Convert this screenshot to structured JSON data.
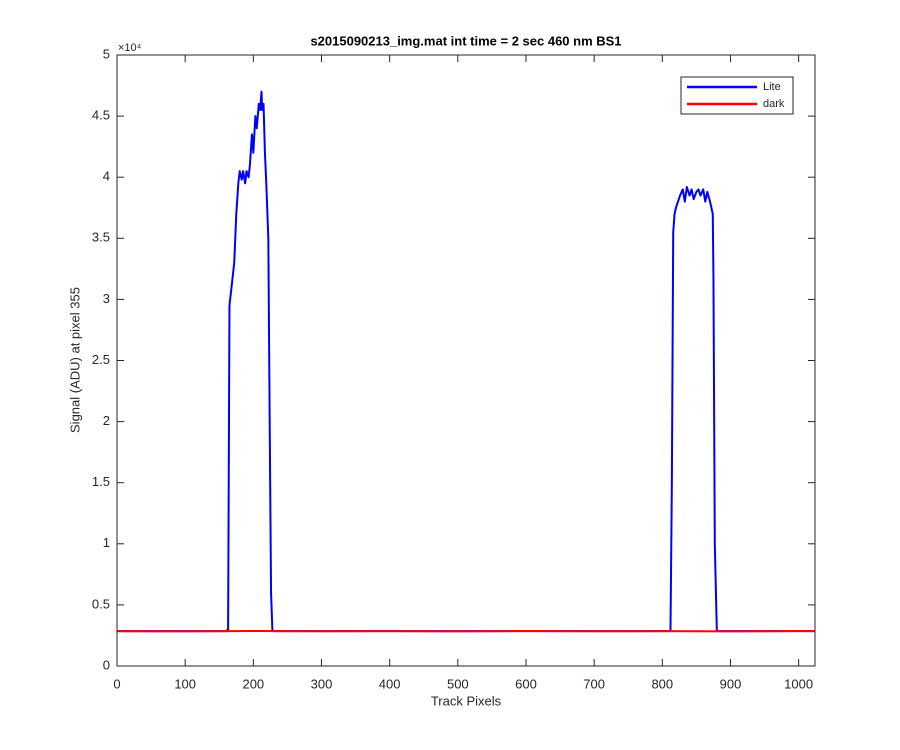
{
  "chart_data": {
    "type": "line",
    "title": "s2015090213_img.mat int time = 2 sec  460 nm BS1",
    "x_label": "Track Pixels",
    "y_label": "Signal (ADU) at pixel 355",
    "y_exponent_label": "×10⁴",
    "xlim": [
      0,
      1024
    ],
    "xticks": [
      0,
      100,
      200,
      300,
      400,
      500,
      600,
      700,
      800,
      900,
      1000
    ],
    "ylim": [
      0,
      5
    ],
    "yticks": [
      0,
      0.5,
      1,
      1.5,
      2,
      2.5,
      3,
      3.5,
      4,
      4.5,
      5
    ],
    "grid": false,
    "legend_position": "top-right",
    "series": [
      {
        "name": "Lite",
        "color": "#0000ff",
        "x": [
          0,
          50,
          100,
          150,
          160,
          163,
          165,
          168,
          172,
          175,
          178,
          180,
          183,
          185,
          188,
          190,
          193,
          195,
          198,
          200,
          203,
          205,
          208,
          210,
          212,
          213,
          215,
          217,
          219,
          220,
          222,
          224,
          226,
          228,
          230,
          300,
          400,
          500,
          600,
          700,
          800,
          810,
          812,
          814,
          816,
          818,
          820,
          823,
          826,
          830,
          833,
          836,
          840,
          843,
          846,
          850,
          853,
          856,
          860,
          863,
          866,
          870,
          872,
          874,
          875,
          877,
          880,
          950,
          1023
        ],
        "values": [
          0.285,
          0.285,
          0.285,
          0.285,
          0.285,
          0.3,
          2.95,
          3.1,
          3.3,
          3.7,
          3.95,
          4.05,
          3.98,
          4.05,
          3.95,
          4.05,
          4.0,
          4.1,
          4.35,
          4.2,
          4.5,
          4.4,
          4.6,
          4.55,
          4.7,
          4.55,
          4.6,
          4.2,
          3.95,
          3.8,
          3.5,
          2.0,
          0.6,
          0.29,
          0.285,
          0.285,
          0.285,
          0.285,
          0.285,
          0.285,
          0.285,
          0.285,
          0.29,
          1.5,
          3.55,
          3.7,
          3.75,
          3.8,
          3.85,
          3.9,
          3.8,
          3.92,
          3.85,
          3.9,
          3.82,
          3.88,
          3.9,
          3.85,
          3.9,
          3.8,
          3.88,
          3.8,
          3.75,
          3.7,
          3.2,
          1.0,
          0.285,
          0.285,
          0.285
        ]
      },
      {
        "name": "dark",
        "color": "#ff0000",
        "x": [
          0,
          100,
          200,
          300,
          400,
          500,
          600,
          700,
          800,
          900,
          1000,
          1023
        ],
        "values": [
          0.285,
          0.283,
          0.286,
          0.284,
          0.285,
          0.283,
          0.286,
          0.284,
          0.285,
          0.283,
          0.286,
          0.285
        ]
      }
    ]
  }
}
